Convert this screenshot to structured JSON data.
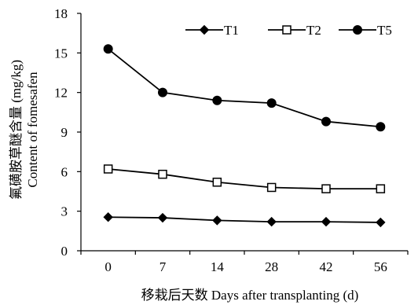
{
  "chart_data": {
    "type": "line",
    "title": "",
    "xlabel": "移栽后天数 Days after transplanting (d)",
    "ylabel": [
      "氟磺胺草醚含量 (mg/kg)",
      "Content of fomesafen"
    ],
    "categories": [
      "0",
      "7",
      "14",
      "28",
      "42",
      "56"
    ],
    "ylim": [
      0,
      18
    ],
    "yticks": [
      "0",
      "3",
      "6",
      "9",
      "12",
      "15",
      "18"
    ],
    "grid": false,
    "legend_position": "top-right",
    "series": [
      {
        "name": "T1",
        "marker": "diamond-filled",
        "values": [
          2.55,
          2.5,
          2.3,
          2.2,
          2.2,
          2.15
        ]
      },
      {
        "name": "T2",
        "marker": "square-open",
        "values": [
          6.2,
          5.8,
          5.2,
          4.8,
          4.7,
          4.7
        ]
      },
      {
        "name": "T5",
        "marker": "circle-filled",
        "values": [
          15.3,
          12.0,
          11.4,
          11.2,
          9.8,
          9.4
        ]
      }
    ]
  }
}
